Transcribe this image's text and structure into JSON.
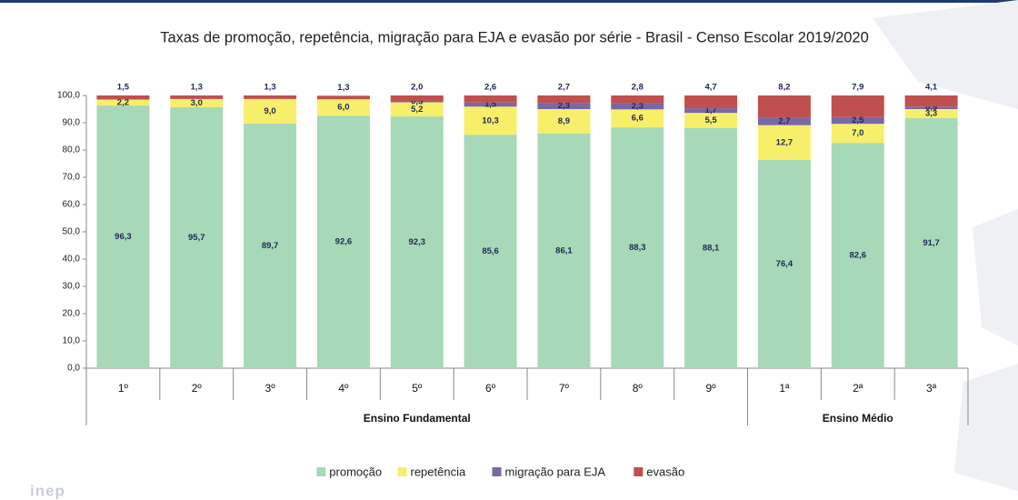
{
  "chart_data": {
    "type": "stacked_bar",
    "title": "Taxas de promoção, repetência, migração para EJA e evasão por série - Brasil - Censo Escolar 2019/2020",
    "categories": [
      "1º",
      "2º",
      "3º",
      "4º",
      "5º",
      "6º",
      "7º",
      "8º",
      "9º",
      "1ª",
      "2ª",
      "3ª"
    ],
    "category_groups": [
      "Ensino Fundamental",
      "Ensino Fundamental",
      "Ensino Fundamental",
      "Ensino Fundamental",
      "Ensino Fundamental",
      "Ensino Fundamental",
      "Ensino Fundamental",
      "Ensino Fundamental",
      "Ensino Fundamental",
      "Ensino Médio",
      "Ensino Médio",
      "Ensino Médio"
    ],
    "series": [
      {
        "name": "promoção",
        "color": "#a7d8b8",
        "values": [
          96.3,
          95.7,
          89.7,
          92.6,
          92.3,
          85.6,
          86.1,
          88.3,
          88.1,
          76.4,
          82.6,
          91.7
        ],
        "value_labels": [
          "96,3",
          "95,7",
          "89,7",
          "92,6",
          "92,3",
          "85,6",
          "86,1",
          "88,3",
          "88,1",
          "76,4",
          "82,6",
          "91,7"
        ]
      },
      {
        "name": "repetência",
        "color": "#f7ef6a",
        "values": [
          2.2,
          3.0,
          9.0,
          6.0,
          5.2,
          10.3,
          8.9,
          6.6,
          5.5,
          12.7,
          7.0,
          3.3
        ],
        "value_labels": [
          "2,2",
          "3,0",
          "9,0",
          "6,0",
          "5,2",
          "10,3",
          "8,9",
          "6,6",
          "5,5",
          "12,7",
          "7,0",
          "3,3"
        ]
      },
      {
        "name": "migração para EJA",
        "color": "#7a68a6",
        "values": [
          0,
          0,
          0,
          0,
          0.5,
          1.5,
          2.3,
          2.3,
          1.7,
          2.7,
          2.5,
          0.9
        ],
        "value_labels": [
          null,
          null,
          null,
          null,
          "0,5",
          "1,5",
          "2,3",
          "2,3",
          "1,7",
          "2,7",
          "2,5",
          "0,9"
        ]
      },
      {
        "name": "evasão",
        "color": "#c0504d",
        "values": [
          1.5,
          1.3,
          1.3,
          1.3,
          2.0,
          2.6,
          2.7,
          2.8,
          4.7,
          8.2,
          7.9,
          4.1
        ],
        "value_labels": [
          "1,5",
          "1,3",
          "1,3",
          "1,3",
          "2,0",
          "2,6",
          "2,7",
          "2,8",
          "4,7",
          "8,2",
          "7,9",
          "4,1"
        ]
      }
    ],
    "ylim": [
      0,
      100
    ],
    "yticks": [
      {
        "value": 0,
        "label": "0,0"
      },
      {
        "value": 10,
        "label": "10,0"
      },
      {
        "value": 20,
        "label": "20,0"
      },
      {
        "value": 30,
        "label": "30,0"
      },
      {
        "value": 40,
        "label": "40,0"
      },
      {
        "value": 50,
        "label": "50,0"
      },
      {
        "value": 60,
        "label": "60,0"
      },
      {
        "value": 70,
        "label": "70,0"
      },
      {
        "value": 80,
        "label": "80,0"
      },
      {
        "value": 90,
        "label": "90,0"
      },
      {
        "value": 100,
        "label": "100,0"
      }
    ],
    "grid": false,
    "legend": "bottom",
    "logo": "inep"
  }
}
